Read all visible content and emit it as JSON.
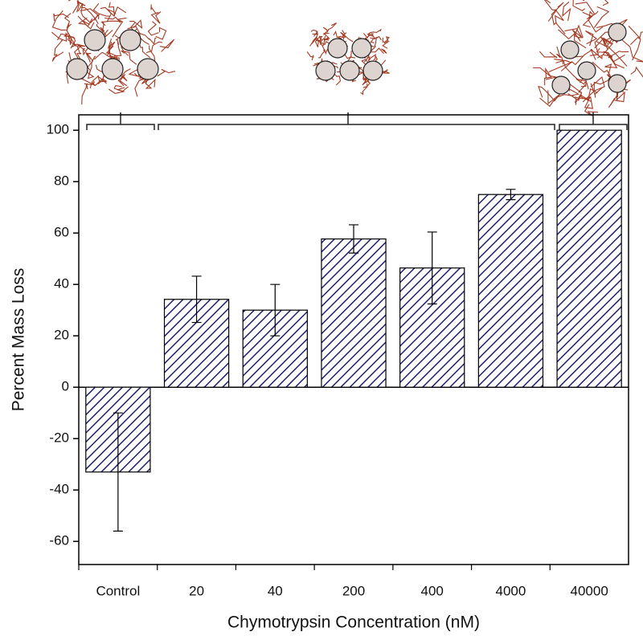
{
  "chart_data": {
    "type": "bar",
    "x_label": "Chymotrypsin Concentration (nM)",
    "y_label": "Percent Mass Loss",
    "categories": [
      "Control",
      "20",
      "40",
      "200",
      "400",
      "4000",
      "40000"
    ],
    "values": [
      -33,
      34.2,
      30,
      57.7,
      46.4,
      75,
      100
    ],
    "errors": [
      23,
      9,
      10,
      5.5,
      14,
      2,
      null
    ],
    "color": "#1f1f6e",
    "ylim": [
      -69,
      106
    ],
    "yticks": [
      -60,
      -40,
      -20,
      0,
      20,
      40,
      60,
      80,
      100
    ]
  }
}
